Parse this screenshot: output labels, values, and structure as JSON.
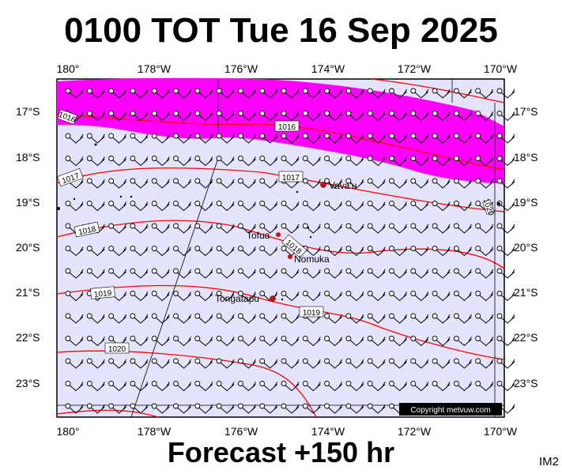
{
  "header": {
    "title": "0100 TOT Tue 16 Sep 2025"
  },
  "footer": {
    "forecast": "Forecast +150 hr",
    "code": "IM2"
  },
  "map": {
    "lon_labels": [
      "180°",
      "178°W",
      "176°W",
      "174°W",
      "172°W",
      "170°W"
    ],
    "lat_labels": [
      "17°S",
      "18°S",
      "19°S",
      "20°S",
      "21°S",
      "22°S",
      "23°S"
    ],
    "isobar_labels": [
      "1016",
      "1016",
      "1017",
      "1017",
      "1018",
      "1018",
      "1019",
      "1019",
      "1020",
      "1020"
    ],
    "places": [
      {
        "name": "Vava'u"
      },
      {
        "name": "Tofua"
      },
      {
        "name": "Nomuka"
      },
      {
        "name": "Tongatapu"
      }
    ],
    "copyright": "Copyright metvuw.com",
    "colors": {
      "ocean": "#e4e4fc",
      "rain": "#ff00ff",
      "isobar": "#ff0000",
      "land": "#000000"
    }
  }
}
